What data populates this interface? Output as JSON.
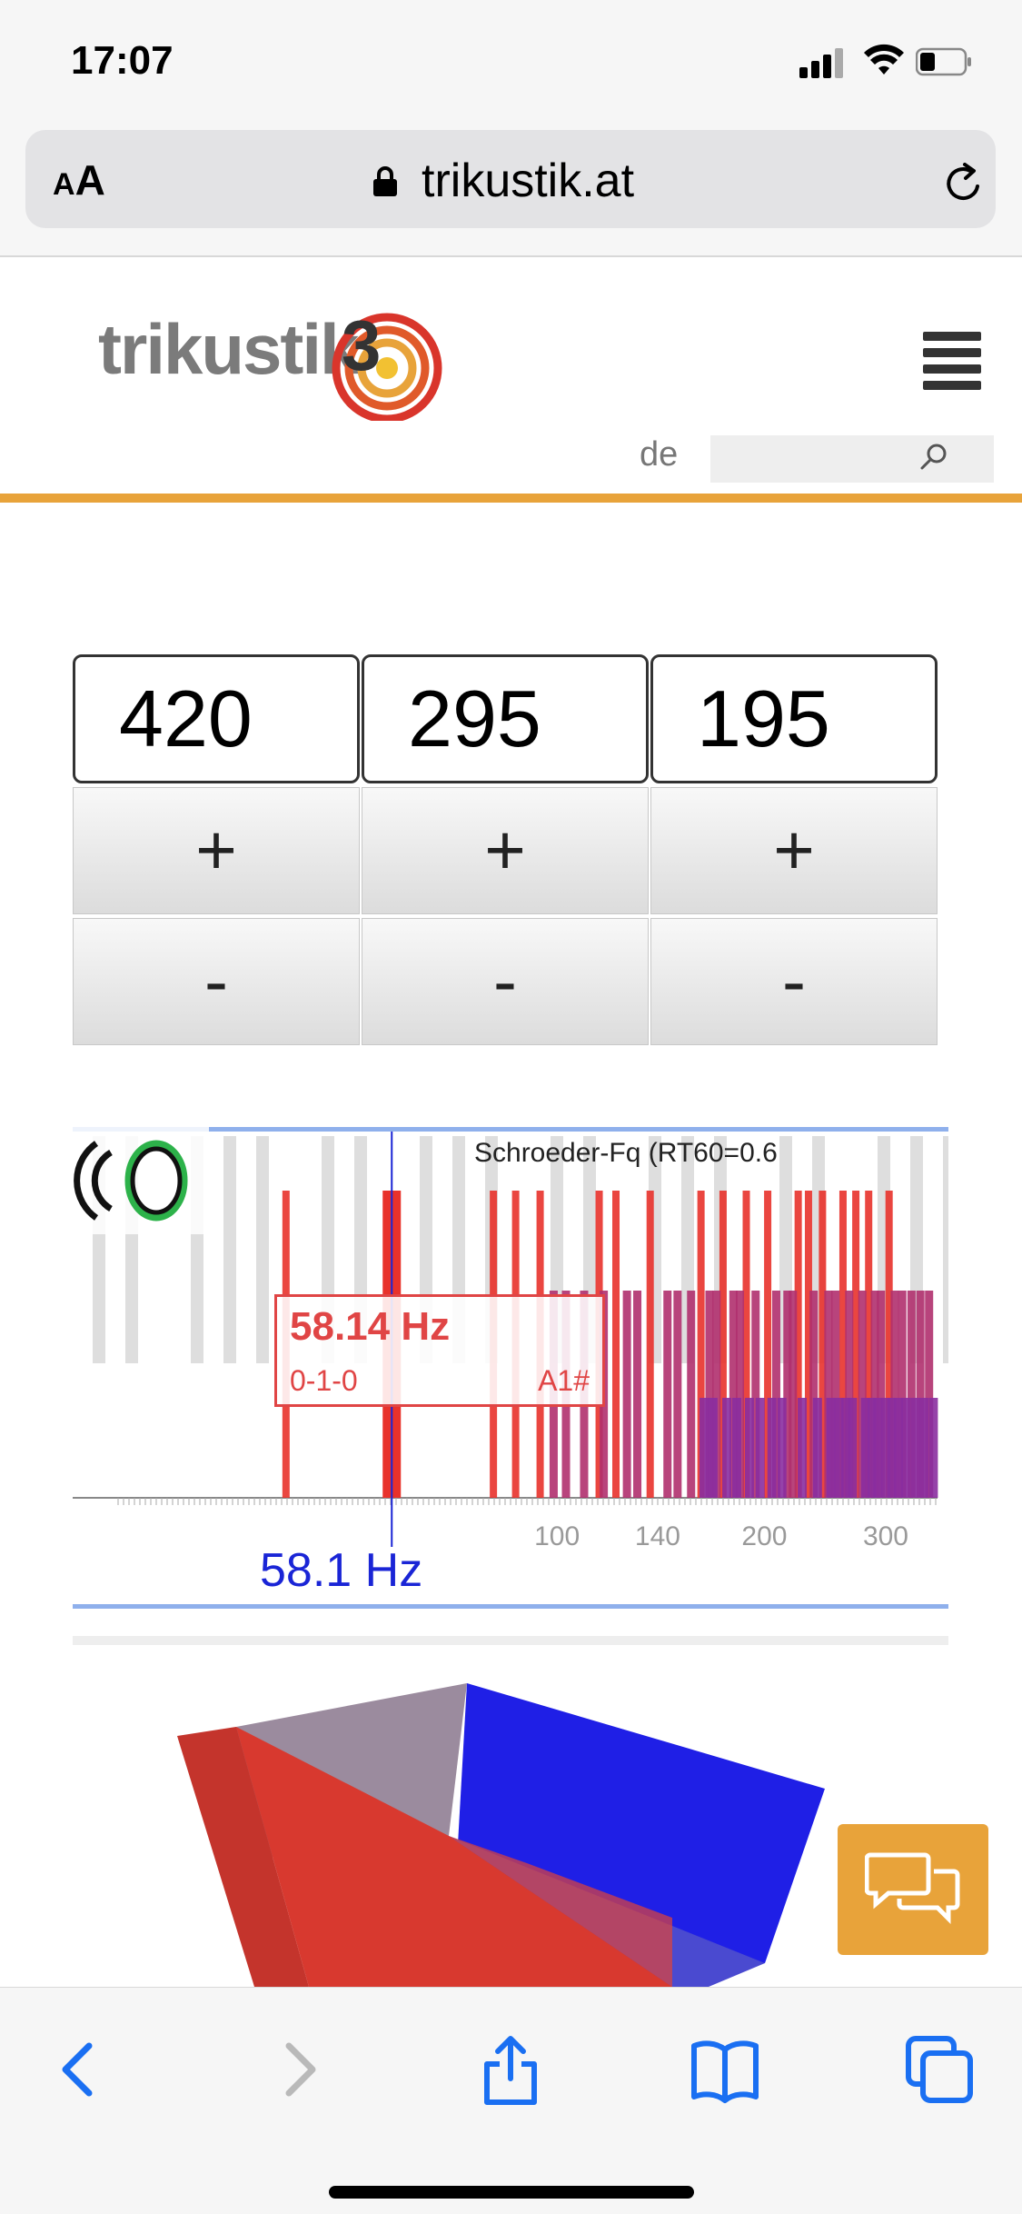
{
  "status_bar": {
    "time": "17:07"
  },
  "browser": {
    "text_size_label_small": "A",
    "text_size_label_large": "A",
    "url_host": "trikustik.at"
  },
  "site": {
    "logo_text": "trikustik",
    "logo_mark": "3",
    "language": "de",
    "search_placeholder": "",
    "accent_color": "#e8a33a"
  },
  "dimensions": {
    "values": [
      "420",
      "295",
      "195"
    ],
    "plus_label": "+",
    "minus_label": "-"
  },
  "chart_data": {
    "type": "bar",
    "title": "Schroeder-Fq (RT60=0.6",
    "x_scale": "log",
    "xlim": [
      20,
      360
    ],
    "x_ticks": [
      "100",
      "140",
      "200",
      "300"
    ],
    "cursor": {
      "frequency_label": "58.1 Hz",
      "frequency": 58.1
    },
    "tooltip": {
      "frequency": "58.14 Hz",
      "mode": "0-1-0",
      "note": "A1#"
    },
    "series": [
      {
        "kind": "axial",
        "color": "#e8322b",
        "frequencies": [
          40.8,
          58.1,
          81.6,
          87.9,
          95.4,
          116.2,
          122.9,
          137.8,
          163.3,
          175.8,
          190.0,
          204.1,
          226.0,
          233.9,
          245.1,
          262.5,
          274.0,
          286.0,
          306.2
        ]
      },
      {
        "kind": "tangential",
        "color": "#b0306e",
        "frequencies": [
          99.8,
          104.0,
          110.5,
          118.0,
          127.5,
          132.0,
          146.0,
          151.0,
          158.0,
          168.0,
          172.0,
          182.0,
          186.0,
          196.0,
          210.0,
          218.0,
          222.0,
          238.0,
          250.0,
          256.0,
          268.0,
          280.0,
          292.0,
          298.0,
          312.0,
          320.0,
          330.0,
          340.0,
          350.0
        ]
      },
      {
        "kind": "oblique",
        "color": "#8a2ea0",
        "frequencies": [
          165.0,
          170.0,
          178.0,
          184.0,
          192.0,
          199.0,
          207.0,
          214.0,
          229.0,
          241.0,
          252.0,
          259.0,
          265.0,
          271.0,
          283.0,
          289.0,
          295.0,
          303.0,
          309.0,
          316.0,
          324.0,
          334.0,
          344.0,
          355.0
        ]
      }
    ]
  },
  "chat": {
    "icon": "chat-bubbles-icon"
  },
  "toolbar": {
    "icons": [
      "back-icon",
      "forward-icon",
      "share-icon",
      "bookmarks-icon",
      "tabs-icon"
    ]
  }
}
